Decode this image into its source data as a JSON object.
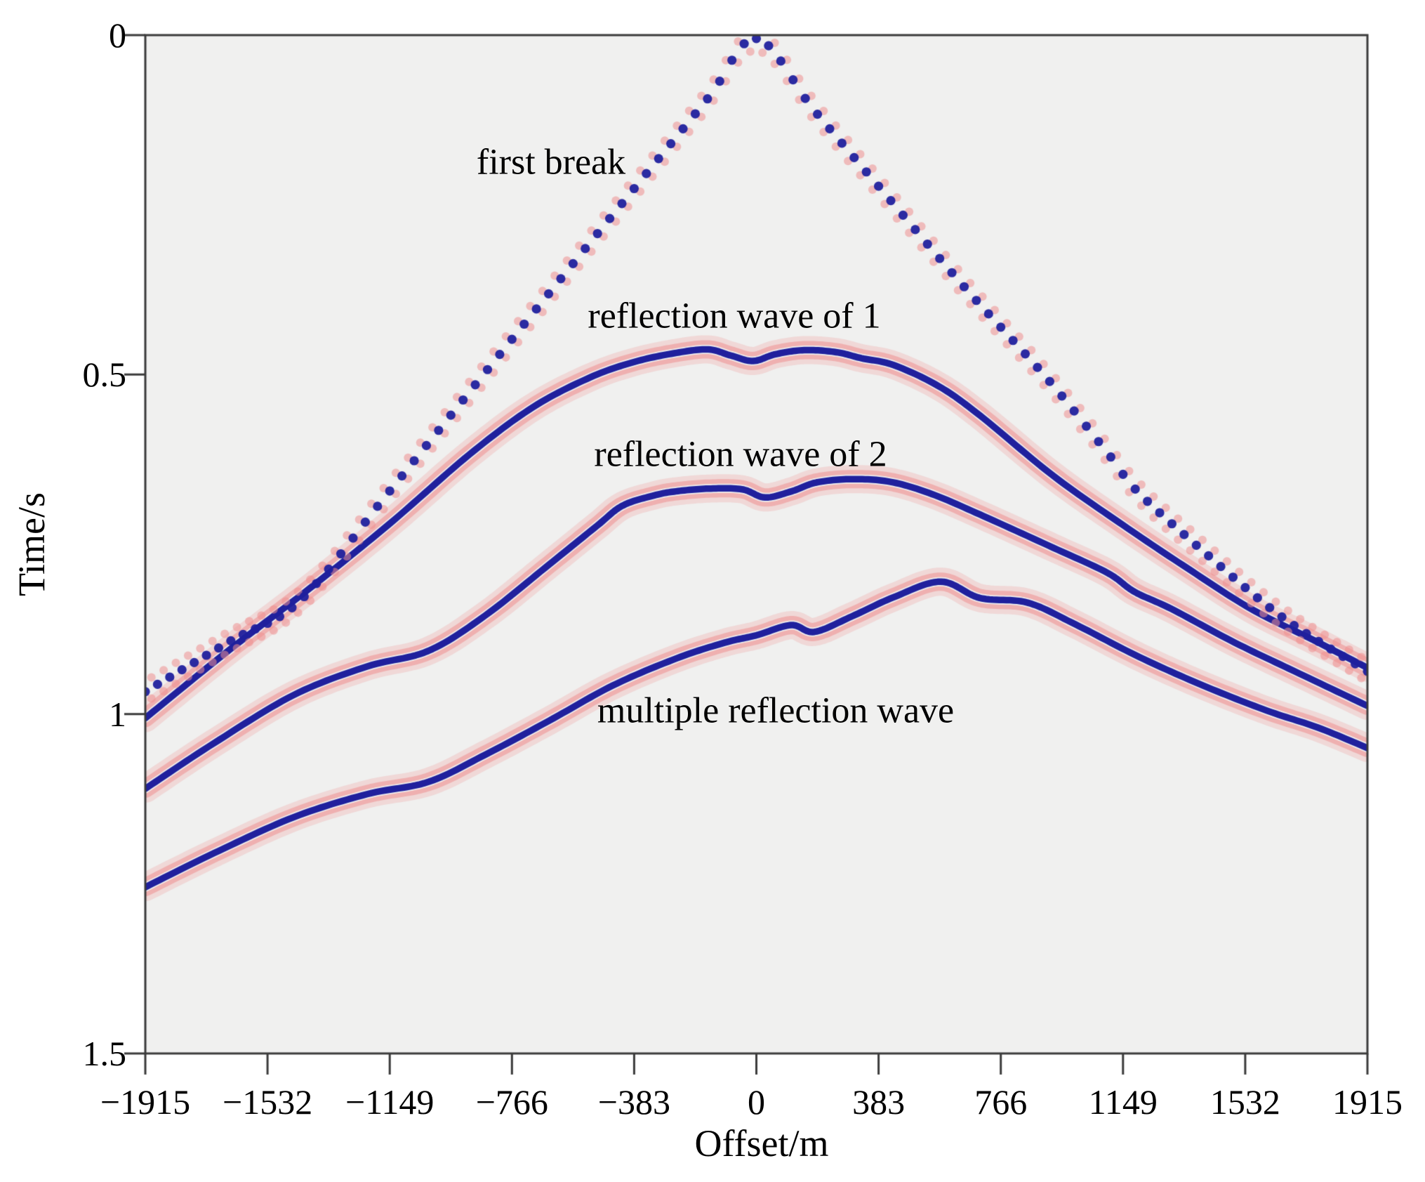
{
  "figure": {
    "background": "#ffffff",
    "plot_background": "#f0f0ef",
    "axis_color": "#3b3b3b",
    "text_color": "#000000"
  },
  "chart_data": {
    "type": "line",
    "subtype": "seismic-shot-gather",
    "title": "",
    "xlabel": "Offset/m",
    "ylabel": "Time/s",
    "xlim": [
      -1915,
      1915
    ],
    "ylim": [
      0,
      1.5
    ],
    "y_inverted": true,
    "grid": false,
    "legend_position": "none",
    "x_ticks": [
      {
        "label": "−1915",
        "value": -1915
      },
      {
        "label": "−1532",
        "value": -1532
      },
      {
        "label": "−1149",
        "value": -1149
      },
      {
        "label": "−766",
        "value": -766
      },
      {
        "label": "−383",
        "value": -383
      },
      {
        "label": "0",
        "value": 0
      },
      {
        "label": "383",
        "value": 383
      },
      {
        "label": "766",
        "value": 766
      },
      {
        "label": "1149",
        "value": 1149
      },
      {
        "label": "1532",
        "value": 1532
      },
      {
        "label": "1915",
        "value": 1915
      }
    ],
    "y_ticks": [
      {
        "label": "0",
        "value": 0
      },
      {
        "label": "0.5",
        "value": 0.5
      },
      {
        "label": "1",
        "value": 1
      },
      {
        "label": "1.5",
        "value": 1.5
      }
    ],
    "colors": {
      "peak_blue": "#20209d",
      "sidelobe_pink": "#ee9090",
      "plot_background": "#f0f0ef",
      "axis": "#3b3b3b"
    },
    "annotations": [
      {
        "text": "first break",
        "offset_m": -643,
        "time_s": 0.19
      },
      {
        "text": "reflection wave of 1",
        "offset_m": -69,
        "time_s": 0.41
      },
      {
        "text": "reflection wave of 2",
        "offset_m": -50,
        "time_s": 0.62
      },
      {
        "text": "multiple reflection wave",
        "offset_m": 60,
        "time_s": 1.0
      }
    ],
    "series": [
      {
        "name": "first break",
        "style": "dotted",
        "points": [
          [
            -1915,
            0.967
          ],
          [
            -1650,
            0.893
          ],
          [
            -1430,
            0.833
          ],
          [
            -1150,
            0.672
          ],
          [
            -850,
            0.497
          ],
          [
            -589,
            0.345
          ],
          [
            -350,
            0.207
          ],
          [
            -150,
            0.092
          ],
          [
            0,
            0.005
          ],
          [
            180,
            0.11
          ],
          [
            400,
            0.232
          ],
          [
            650,
            0.37
          ],
          [
            908,
            0.504
          ],
          [
            1100,
            0.615
          ],
          [
            1194,
            0.672
          ],
          [
            1400,
            0.76
          ],
          [
            1650,
            0.858
          ],
          [
            1915,
            0.937
          ]
        ]
      },
      {
        "name": "reflection wave of 1",
        "style": "wiggle",
        "points": [
          [
            -1915,
            1.006
          ],
          [
            -1650,
            0.905
          ],
          [
            -1400,
            0.815
          ],
          [
            -1150,
            0.72
          ],
          [
            -900,
            0.618
          ],
          [
            -700,
            0.548
          ],
          [
            -520,
            0.504
          ],
          [
            -380,
            0.481
          ],
          [
            -250,
            0.468
          ],
          [
            -150,
            0.463
          ],
          [
            -80,
            0.472
          ],
          [
            -10,
            0.48
          ],
          [
            60,
            0.47
          ],
          [
            150,
            0.464
          ],
          [
            250,
            0.467
          ],
          [
            330,
            0.476
          ],
          [
            430,
            0.486
          ],
          [
            571,
            0.517
          ],
          [
            700,
            0.56
          ],
          [
            930,
            0.649
          ],
          [
            1150,
            0.722
          ],
          [
            1350,
            0.785
          ],
          [
            1550,
            0.845
          ],
          [
            1750,
            0.892
          ],
          [
            1915,
            0.932
          ]
        ]
      },
      {
        "name": "reflection wave of 2",
        "style": "wiggle",
        "points": [
          [
            -1915,
            1.11
          ],
          [
            -1700,
            1.043
          ],
          [
            -1450,
            0.972
          ],
          [
            -1220,
            0.93
          ],
          [
            -1028,
            0.907
          ],
          [
            -850,
            0.855
          ],
          [
            -650,
            0.78
          ],
          [
            -500,
            0.723
          ],
          [
            -419,
            0.693
          ],
          [
            -320,
            0.678
          ],
          [
            -252,
            0.672
          ],
          [
            -150,
            0.668
          ],
          [
            -45,
            0.669
          ],
          [
            27,
            0.681
          ],
          [
            110,
            0.672
          ],
          [
            188,
            0.659
          ],
          [
            298,
            0.654
          ],
          [
            420,
            0.658
          ],
          [
            550,
            0.676
          ],
          [
            700,
            0.706
          ],
          [
            930,
            0.755
          ],
          [
            1100,
            0.792
          ],
          [
            1185,
            0.82
          ],
          [
            1300,
            0.845
          ],
          [
            1500,
            0.895
          ],
          [
            1700,
            0.94
          ],
          [
            1915,
            0.988
          ]
        ]
      },
      {
        "name": "multiple reflection wave",
        "style": "wiggle",
        "points": [
          [
            -1915,
            1.255
          ],
          [
            -1700,
            1.205
          ],
          [
            -1450,
            1.152
          ],
          [
            -1220,
            1.118
          ],
          [
            -1028,
            1.1
          ],
          [
            -850,
            1.06
          ],
          [
            -650,
            1.01
          ],
          [
            -450,
            0.958
          ],
          [
            -250,
            0.918
          ],
          [
            -100,
            0.895
          ],
          [
            0,
            0.884
          ],
          [
            109,
            0.869
          ],
          [
            182,
            0.879
          ],
          [
            300,
            0.856
          ],
          [
            430,
            0.828
          ],
          [
            578,
            0.805
          ],
          [
            700,
            0.829
          ],
          [
            850,
            0.836
          ],
          [
            1000,
            0.868
          ],
          [
            1200,
            0.916
          ],
          [
            1400,
            0.958
          ],
          [
            1600,
            0.995
          ],
          [
            1760,
            1.02
          ],
          [
            1915,
            1.05
          ]
        ]
      }
    ]
  }
}
